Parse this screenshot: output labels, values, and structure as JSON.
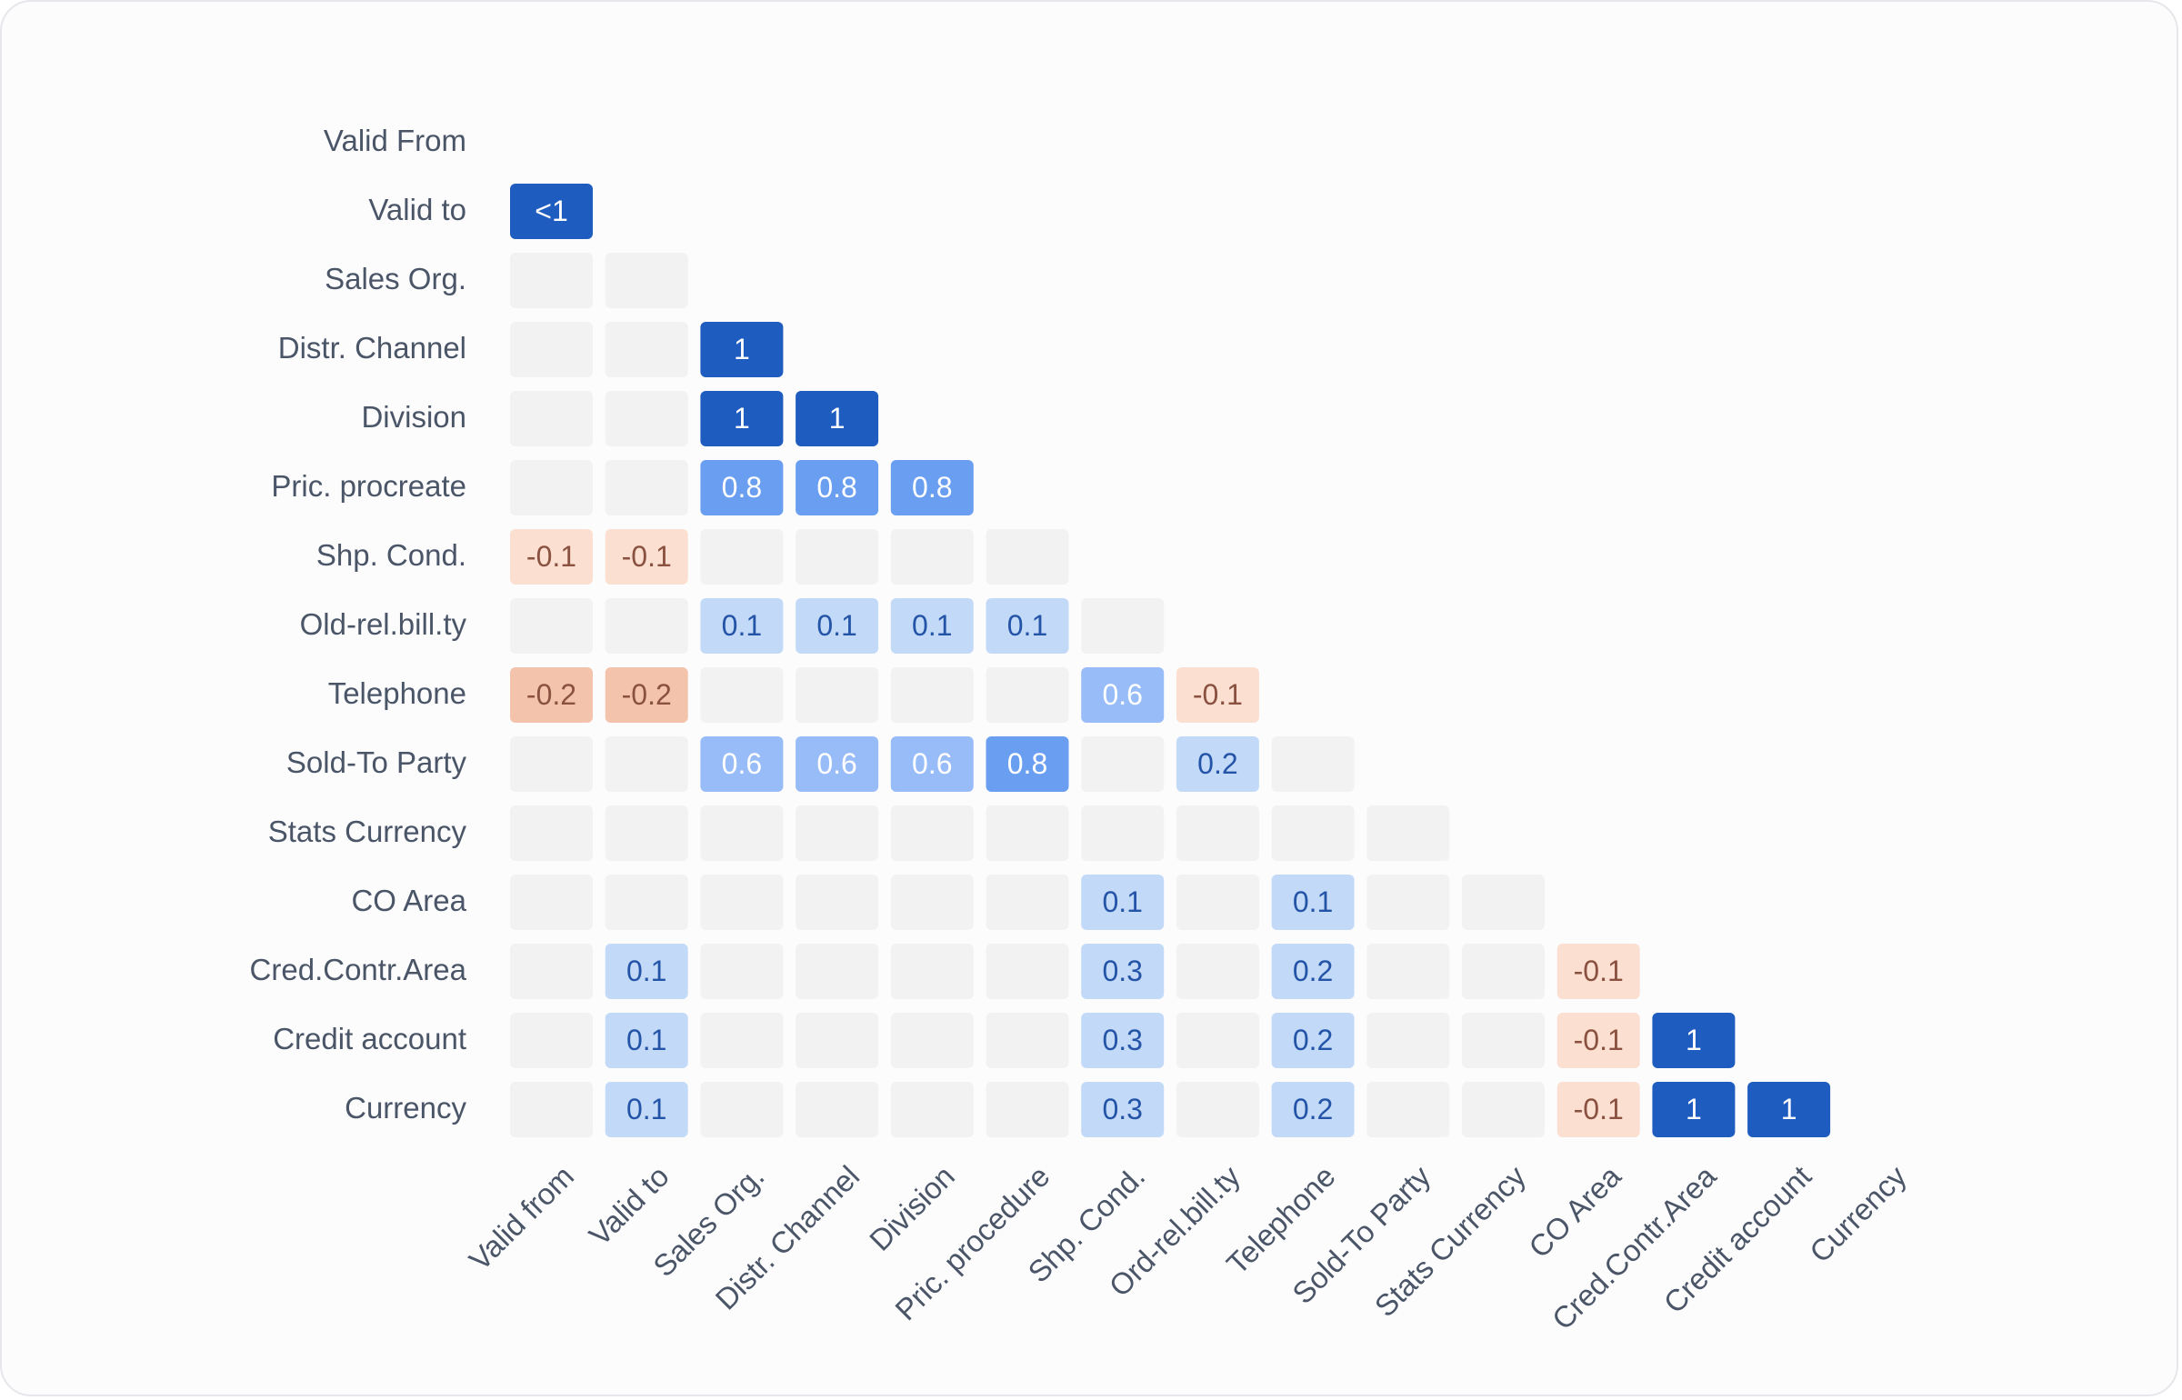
{
  "chart_data": {
    "type": "heatmap",
    "title": "",
    "row_labels": [
      "Valid From",
      "Valid to",
      "Sales Org.",
      "Distr. Channel",
      "Division",
      "Pric. procreate",
      "Shp. Cond.",
      "Old-rel.bill.ty",
      "Telephone",
      "Sold-To Party",
      "Stats Currency",
      "CO Area",
      "Cred.Contr.Area",
      "Credit account",
      "Currency"
    ],
    "column_labels": [
      "Valid from",
      "Valid to",
      "Sales Org.",
      "Distr. Channel",
      "Division",
      "Pric. procedure",
      "Shp. Cond.",
      "Ord-rel.bill.ty",
      "Telephone",
      "Sold-To Party",
      "Stats Currency",
      "CO Area",
      "Cred.Contr.Area",
      "Credit account",
      "Currency"
    ],
    "layout": "lower-triangle",
    "empty_cell_value": "",
    "cells": [
      [],
      [
        "<1"
      ],
      [
        "",
        ""
      ],
      [
        "",
        "",
        "1"
      ],
      [
        "",
        "",
        "1",
        "1"
      ],
      [
        "",
        "",
        "0.8",
        "0.8",
        "0.8"
      ],
      [
        "-0.1",
        "-0.1",
        "",
        "",
        "",
        ""
      ],
      [
        "",
        "",
        "0.1",
        "0.1",
        "0.1",
        "0.1",
        ""
      ],
      [
        "-0.2",
        "-0.2",
        "",
        "",
        "",
        "",
        "0.6",
        "-0.1"
      ],
      [
        "",
        "",
        "0.6",
        "0.6",
        "0.6",
        "0.8",
        "",
        "0.2",
        ""
      ],
      [
        "",
        "",
        "",
        "",
        "",
        "",
        "",
        "",
        "",
        ""
      ],
      [
        "",
        "",
        "",
        "",
        "",
        "",
        "0.1",
        "",
        "0.1",
        "",
        ""
      ],
      [
        "",
        "0.1",
        "",
        "",
        "",
        "",
        "0.3",
        "",
        "0.2",
        "",
        "",
        "-0.1"
      ],
      [
        "",
        "0.1",
        "",
        "",
        "",
        "",
        "0.3",
        "",
        "0.2",
        "",
        "",
        "-0.1",
        "1"
      ],
      [
        "",
        "0.1",
        "",
        "",
        "",
        "",
        "0.3",
        "",
        "0.2",
        "",
        "",
        "-0.1",
        "1",
        "1"
      ]
    ],
    "colors": {
      "empty": "#f2f2f3",
      "strong_positive": "#1f5cbf",
      "high_positive": "#6a9ef0",
      "mid_positive": "#98bcf7",
      "low_positive": "#c2daf7",
      "low_negative": "#fbdfd0",
      "mid_negative": "#f3c4ab",
      "text_light": "#ffffff",
      "text_dark": "#2454a8",
      "text_negative": "#8a5140"
    }
  }
}
